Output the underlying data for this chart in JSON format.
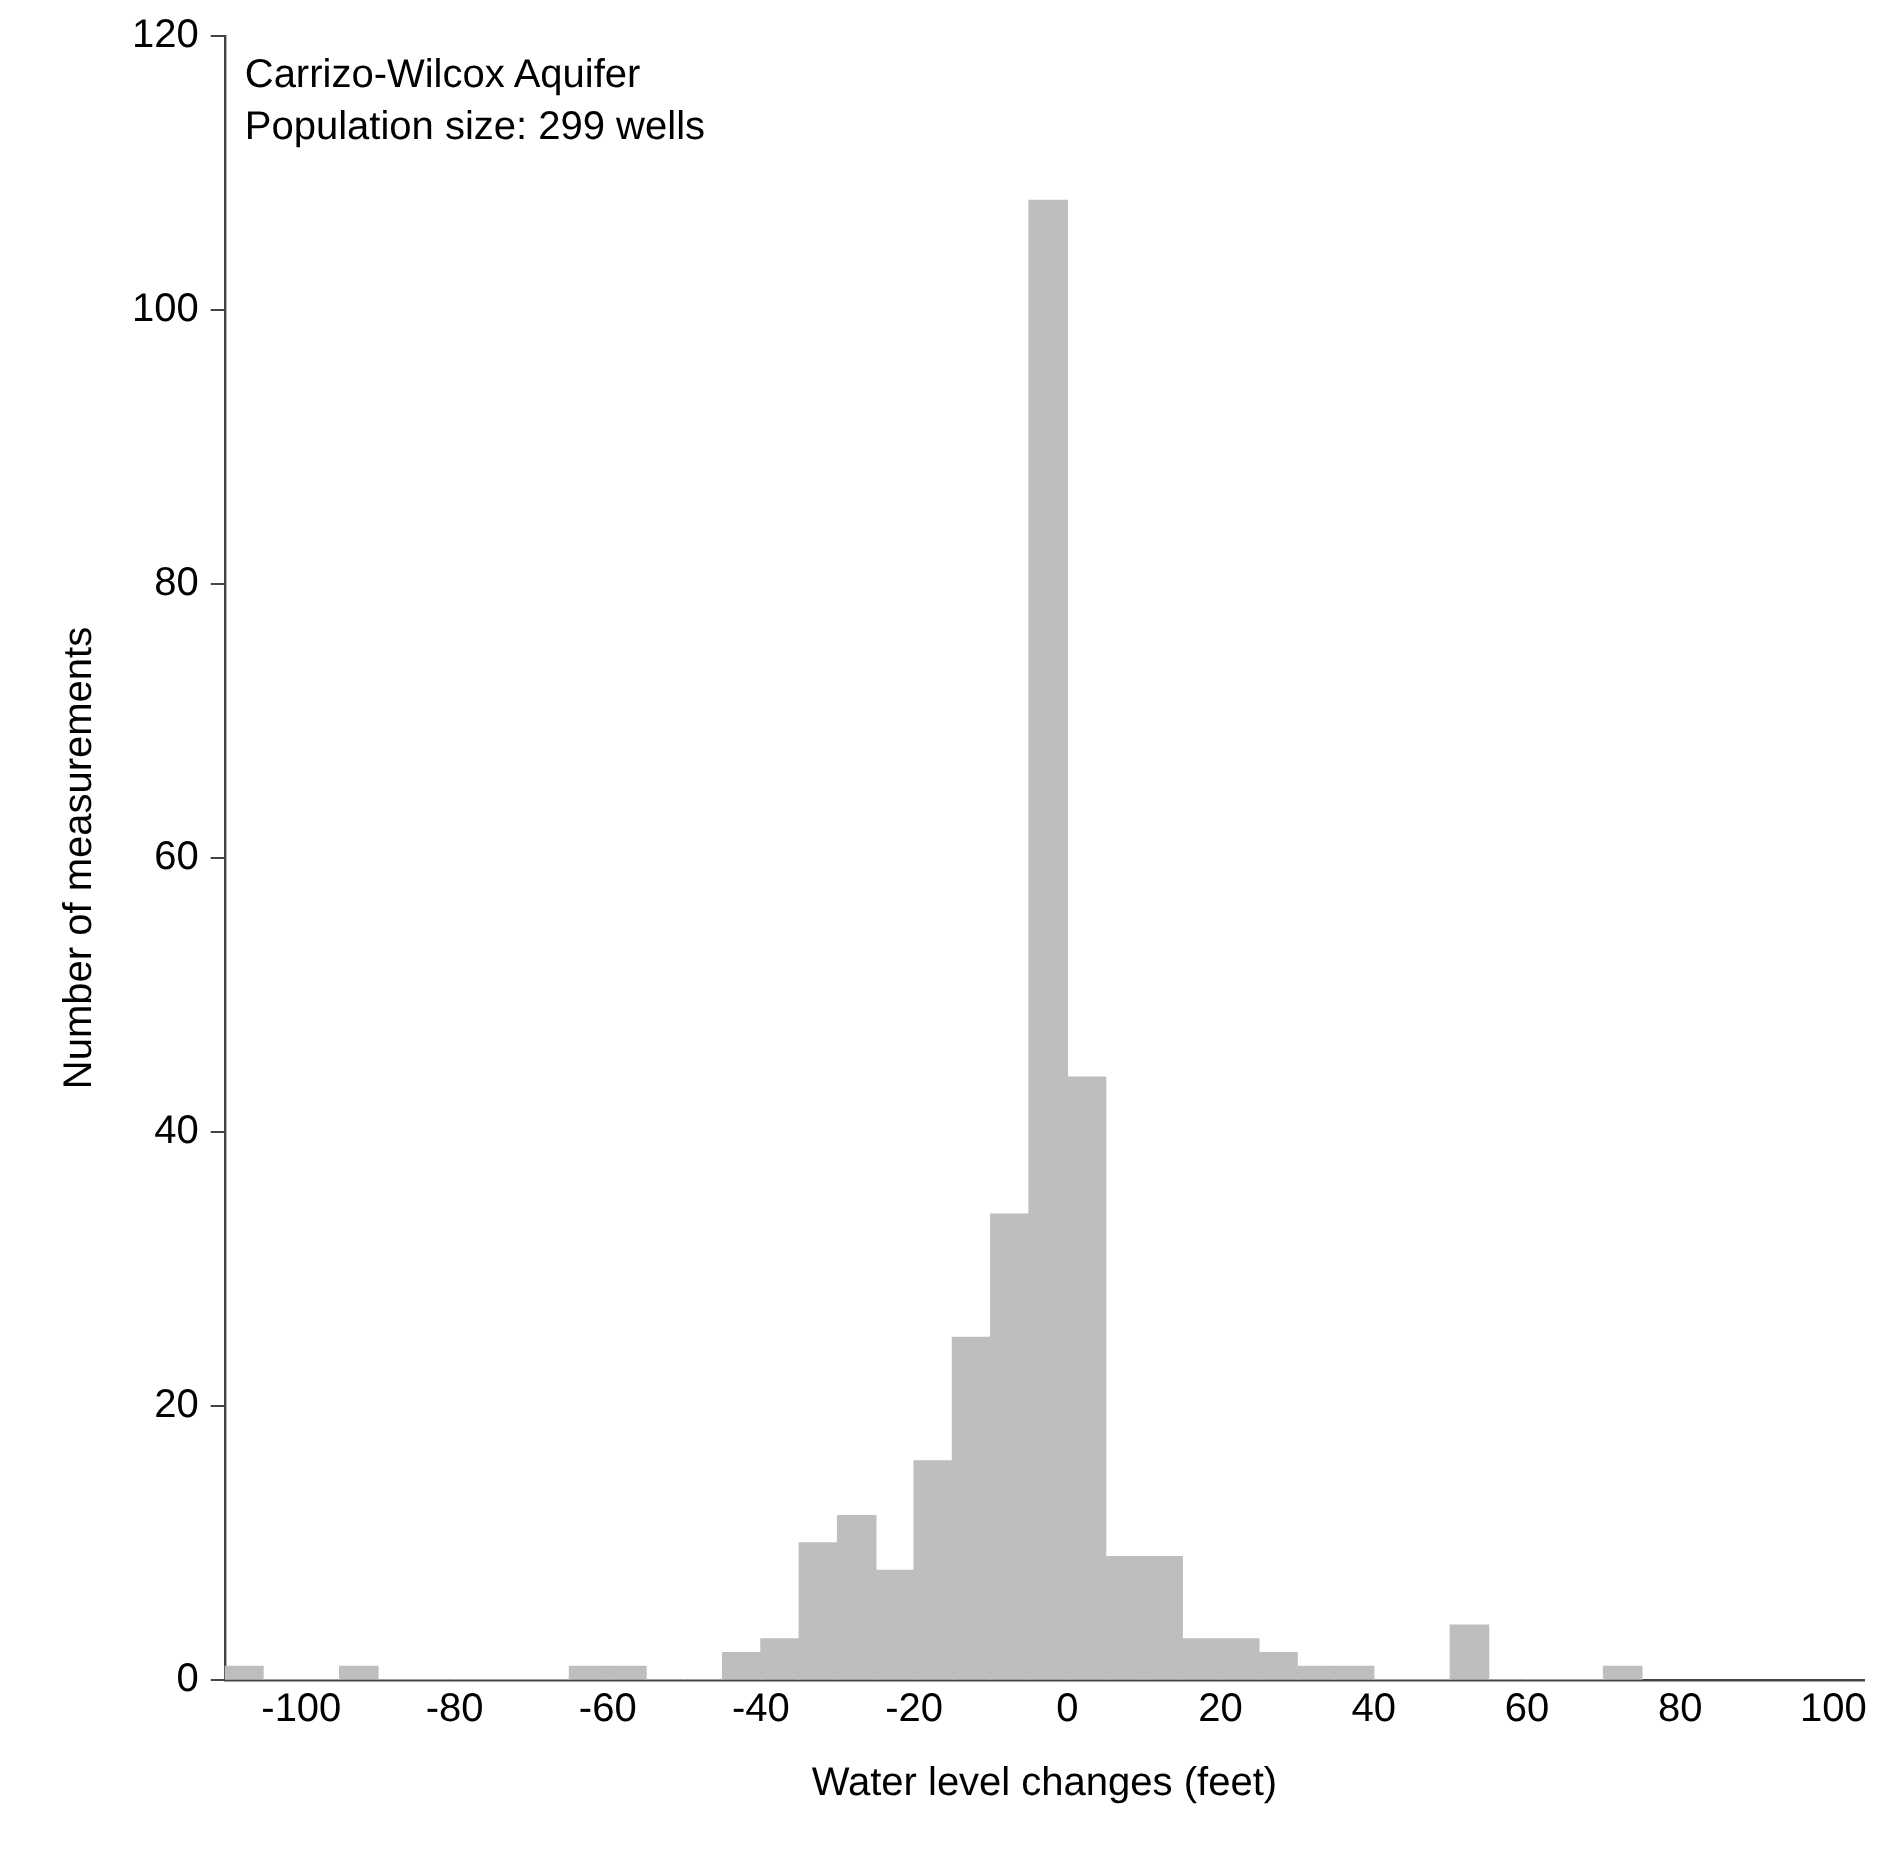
{
  "chart_data": {
    "type": "histogram",
    "xlabel": "Water level changes (feet)",
    "ylabel": "Number of measurements",
    "annotations": [
      "Carrizo-Wilcox Aquifer",
      "Population size: 299 wells"
    ],
    "bins": [
      -110,
      -105,
      -100,
      -95,
      -90,
      -85,
      -80,
      -75,
      -70,
      -65,
      -60,
      -55,
      -50,
      -45,
      -40,
      -35,
      -30,
      -25,
      -20,
      -15,
      -10,
      -5,
      0,
      5,
      10,
      15,
      20,
      25,
      30,
      35,
      40,
      45,
      50,
      55,
      60,
      65,
      70,
      75
    ],
    "values": [
      1,
      0,
      0,
      1,
      0,
      0,
      0,
      0,
      0,
      1,
      1,
      0,
      0,
      2,
      3,
      10,
      12,
      8,
      16,
      25,
      34,
      108,
      44,
      9,
      9,
      3,
      3,
      2,
      1,
      1,
      0,
      0,
      4,
      0,
      0,
      0,
      1
    ],
    "color": "#bebebe",
    "xlim": [
      -110,
      104
    ],
    "xticks": [
      -100,
      -80,
      -60,
      -40,
      -20,
      0,
      20,
      40,
      60,
      80,
      100
    ],
    "ylim": [
      0,
      120
    ],
    "yticks": [
      0,
      20,
      40,
      60,
      80,
      100,
      120
    ],
    "grid": false,
    "legend": false
  }
}
